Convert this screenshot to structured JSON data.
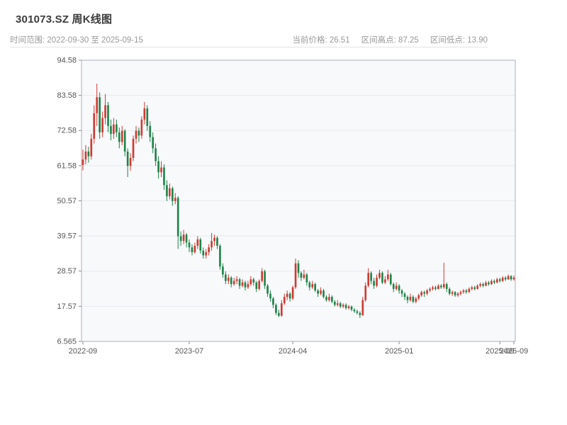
{
  "header": {
    "title": "301073.SZ 周K线图",
    "time_range_text": "时间范围: 2022-09-30 至 2025-09-15",
    "current_price_text": "当前价格: 26.51",
    "range_high_text": "区间高点: 87.25",
    "range_low_text": "区间低点: 13.90"
  },
  "chart_data": {
    "type": "candlestick",
    "symbol": "301073.SZ",
    "interval": "weekly",
    "title": "301073.SZ 周K线图",
    "time_range": {
      "start": "2022-09-30",
      "end": "2025-09-15"
    },
    "current_price": 26.51,
    "range_high": 87.25,
    "range_low": 13.9,
    "legend": "none",
    "grid": "horizontal",
    "y_axis": {
      "min": 6.565,
      "max": 94.58,
      "tick_values": [
        94.58,
        83.58,
        72.58,
        61.58,
        50.57,
        39.57,
        28.57,
        17.57,
        6.565
      ],
      "tick_labels": [
        "94.58",
        "83.58",
        "72.58",
        "61.58",
        "50.57",
        "39.57",
        "28.57",
        "17.57",
        "6.565"
      ]
    },
    "x_axis": {
      "ticks": [
        {
          "label": "2022-09",
          "week": 0
        },
        {
          "label": "2023-07",
          "week": 38
        },
        {
          "label": "2024-04",
          "week": 75
        },
        {
          "label": "2025-01",
          "week": 113
        },
        {
          "label": "2025-09",
          "week": 149
        },
        {
          "label": "2025-09",
          "week": 154
        }
      ]
    },
    "colors": {
      "up": "#cf3a31",
      "down": "#1e8449",
      "grid": "#e7e9ee",
      "plot_bg": "#f8f9fb",
      "axis": "#888888",
      "border": "#aab0b8",
      "label": "#555555"
    },
    "candles": [
      [
        61.8,
        66.6,
        60.1,
        63.5
      ],
      [
        63.5,
        68.0,
        62.0,
        66.0
      ],
      [
        66.0,
        67.5,
        62.5,
        64.5
      ],
      [
        64.5,
        71.5,
        63.5,
        70.0
      ],
      [
        70.0,
        80.5,
        68.5,
        78.0
      ],
      [
        78.0,
        87.25,
        74.0,
        83.0
      ],
      [
        83.0,
        84.5,
        70.0,
        72.0
      ],
      [
        72.0,
        78.5,
        70.5,
        76.5
      ],
      [
        76.5,
        84.0,
        74.5,
        80.5
      ],
      [
        80.5,
        81.5,
        72.0,
        74.0
      ],
      [
        74.0,
        76.0,
        69.5,
        71.5
      ],
      [
        71.5,
        76.5,
        70.0,
        74.5
      ],
      [
        74.5,
        76.0,
        70.5,
        72.0
      ],
      [
        72.0,
        73.5,
        67.0,
        69.0
      ],
      [
        69.0,
        74.0,
        68.0,
        72.5
      ],
      [
        72.5,
        73.0,
        64.5,
        66.0
      ],
      [
        66.0,
        67.0,
        58.0,
        61.5
      ],
      [
        61.5,
        65.5,
        60.0,
        64.0
      ],
      [
        64.0,
        71.0,
        63.0,
        70.0
      ],
      [
        70.0,
        74.0,
        68.5,
        72.5
      ],
      [
        72.5,
        73.5,
        69.0,
        71.0
      ],
      [
        71.0,
        77.0,
        70.0,
        76.0
      ],
      [
        76.0,
        81.5,
        74.5,
        79.5
      ],
      [
        79.5,
        80.5,
        72.5,
        74.0
      ],
      [
        74.0,
        75.5,
        69.0,
        70.5
      ],
      [
        70.5,
        72.0,
        65.5,
        67.0
      ],
      [
        67.0,
        68.5,
        61.5,
        63.0
      ],
      [
        63.0,
        64.5,
        57.5,
        59.5
      ],
      [
        59.5,
        63.0,
        58.0,
        61.0
      ],
      [
        61.0,
        62.0,
        54.0,
        55.5
      ],
      [
        55.5,
        57.0,
        50.5,
        52.0
      ],
      [
        52.0,
        56.0,
        51.0,
        54.5
      ],
      [
        54.5,
        55.0,
        49.0,
        50.5
      ],
      [
        50.5,
        53.0,
        49.5,
        51.5
      ],
      [
        51.5,
        52.0,
        35.5,
        39.5
      ],
      [
        39.5,
        41.0,
        36.5,
        38.0
      ],
      [
        38.0,
        41.5,
        37.0,
        40.0
      ],
      [
        40.0,
        40.5,
        36.0,
        37.5
      ],
      [
        37.5,
        38.5,
        34.5,
        36.0
      ],
      [
        36.0,
        37.0,
        33.5,
        34.5
      ],
      [
        34.5,
        37.5,
        34.0,
        36.5
      ],
      [
        36.5,
        39.5,
        35.5,
        38.5
      ],
      [
        38.5,
        39.0,
        34.0,
        35.0
      ],
      [
        35.0,
        36.0,
        32.5,
        33.5
      ],
      [
        33.5,
        35.5,
        32.5,
        34.5
      ],
      [
        34.5,
        37.0,
        33.5,
        36.0
      ],
      [
        36.0,
        40.5,
        35.0,
        38.0
      ],
      [
        38.0,
        40.0,
        36.5,
        39.0
      ],
      [
        39.0,
        39.5,
        35.5,
        36.5
      ],
      [
        36.5,
        37.0,
        29.0,
        30.0
      ],
      [
        30.0,
        31.0,
        26.5,
        27.5
      ],
      [
        27.5,
        28.5,
        24.5,
        25.5
      ],
      [
        25.5,
        27.5,
        24.5,
        26.5
      ],
      [
        26.5,
        27.0,
        23.5,
        24.5
      ],
      [
        24.5,
        26.5,
        24.0,
        25.5
      ],
      [
        25.5,
        27.0,
        24.5,
        26.0
      ],
      [
        26.0,
        26.5,
        23.0,
        24.0
      ],
      [
        24.0,
        26.0,
        23.5,
        25.0
      ],
      [
        25.0,
        25.5,
        22.5,
        23.5
      ],
      [
        23.5,
        25.5,
        23.0,
        24.5
      ],
      [
        24.5,
        27.0,
        24.0,
        26.0
      ],
      [
        26.0,
        26.5,
        24.0,
        25.0
      ],
      [
        25.0,
        25.5,
        22.0,
        23.0
      ],
      [
        23.0,
        26.0,
        22.5,
        25.5
      ],
      [
        25.5,
        29.5,
        25.0,
        28.5
      ],
      [
        28.5,
        29.0,
        23.0,
        24.0
      ],
      [
        24.0,
        24.5,
        20.5,
        21.5
      ],
      [
        21.5,
        22.5,
        19.0,
        20.0
      ],
      [
        20.0,
        20.5,
        17.0,
        18.0
      ],
      [
        18.0,
        18.5,
        14.8,
        15.5
      ],
      [
        15.5,
        16.5,
        14.2,
        14.6
      ],
      [
        14.6,
        19.5,
        14.3,
        18.5
      ],
      [
        18.5,
        21.5,
        18.0,
        20.5
      ],
      [
        20.5,
        22.5,
        19.5,
        21.5
      ],
      [
        21.5,
        22.0,
        19.0,
        20.0
      ],
      [
        20.0,
        24.0,
        19.5,
        23.5
      ],
      [
        23.5,
        32.5,
        23.0,
        31.0
      ],
      [
        31.0,
        32.0,
        26.5,
        28.0
      ],
      [
        28.0,
        28.5,
        25.5,
        26.5
      ],
      [
        26.5,
        29.0,
        26.0,
        27.5
      ],
      [
        27.5,
        28.0,
        24.0,
        25.0
      ],
      [
        25.0,
        25.5,
        22.5,
        23.5
      ],
      [
        23.5,
        25.5,
        23.0,
        24.5
      ],
      [
        24.5,
        25.0,
        22.0,
        22.5
      ],
      [
        22.5,
        23.0,
        20.5,
        21.5
      ],
      [
        21.5,
        23.5,
        21.0,
        22.5
      ],
      [
        22.5,
        23.0,
        20.0,
        20.5
      ],
      [
        20.5,
        21.0,
        19.0,
        19.5
      ],
      [
        19.5,
        21.5,
        19.0,
        20.5
      ],
      [
        20.5,
        21.0,
        18.5,
        19.0
      ],
      [
        19.0,
        19.5,
        17.5,
        18.0
      ],
      [
        18.0,
        19.5,
        17.5,
        18.5
      ],
      [
        18.5,
        19.0,
        17.0,
        17.5
      ],
      [
        17.5,
        18.5,
        17.0,
        18.0
      ],
      [
        18.0,
        18.5,
        16.5,
        17.0
      ],
      [
        17.0,
        18.0,
        16.5,
        17.5
      ],
      [
        17.5,
        17.8,
        16.0,
        16.5
      ],
      [
        16.5,
        17.0,
        15.5,
        16.0
      ],
      [
        16.0,
        16.5,
        15.0,
        15.5
      ],
      [
        15.5,
        16.0,
        13.9,
        14.8
      ],
      [
        14.8,
        20.5,
        14.5,
        19.5
      ],
      [
        19.5,
        25.0,
        19.0,
        24.0
      ],
      [
        24.0,
        29.5,
        23.5,
        28.0
      ],
      [
        28.0,
        28.5,
        24.5,
        25.5
      ],
      [
        25.5,
        26.5,
        23.0,
        24.0
      ],
      [
        24.0,
        27.5,
        23.5,
        26.5
      ],
      [
        26.5,
        29.0,
        26.0,
        28.0
      ],
      [
        28.0,
        28.5,
        24.5,
        25.0
      ],
      [
        25.0,
        27.0,
        24.5,
        26.0
      ],
      [
        26.0,
        29.0,
        25.5,
        27.5
      ],
      [
        27.5,
        28.0,
        24.0,
        24.5
      ],
      [
        24.5,
        25.0,
        22.0,
        23.0
      ],
      [
        23.0,
        25.0,
        22.5,
        24.0
      ],
      [
        24.0,
        24.5,
        21.5,
        22.5
      ],
      [
        22.5,
        23.0,
        20.5,
        21.5
      ],
      [
        21.5,
        22.0,
        19.5,
        20.5
      ],
      [
        20.5,
        21.0,
        18.5,
        19.5
      ],
      [
        19.5,
        21.5,
        19.0,
        20.5
      ],
      [
        20.5,
        21.0,
        18.5,
        19.0
      ],
      [
        19.0,
        20.5,
        18.5,
        20.0
      ],
      [
        20.0,
        21.5,
        19.5,
        21.0
      ],
      [
        21.0,
        22.5,
        20.5,
        22.0
      ],
      [
        22.0,
        22.5,
        20.5,
        21.5
      ],
      [
        21.5,
        23.0,
        21.0,
        22.5
      ],
      [
        22.5,
        23.5,
        22.0,
        23.0
      ],
      [
        23.0,
        24.0,
        22.5,
        23.5
      ],
      [
        23.5,
        24.0,
        22.5,
        23.0
      ],
      [
        23.0,
        24.5,
        22.8,
        24.0
      ],
      [
        24.0,
        24.5,
        23.0,
        23.5
      ],
      [
        23.5,
        31.2,
        23.0,
        24.5
      ],
      [
        24.5,
        25.0,
        22.0,
        23.0
      ],
      [
        23.0,
        23.5,
        21.0,
        21.5
      ],
      [
        21.5,
        22.5,
        20.8,
        22.0
      ],
      [
        22.0,
        22.3,
        20.5,
        21.0
      ],
      [
        21.0,
        22.0,
        20.5,
        21.5
      ],
      [
        21.5,
        22.5,
        21.0,
        22.0
      ],
      [
        22.0,
        23.0,
        21.5,
        22.5
      ],
      [
        22.5,
        23.0,
        21.5,
        22.0
      ],
      [
        22.0,
        23.5,
        21.8,
        23.0
      ],
      [
        23.0,
        24.0,
        22.5,
        23.5
      ],
      [
        23.5,
        24.0,
        22.5,
        23.0
      ],
      [
        23.0,
        24.5,
        22.8,
        24.0
      ],
      [
        24.0,
        25.0,
        23.5,
        24.5
      ],
      [
        24.5,
        25.0,
        23.5,
        24.0
      ],
      [
        24.0,
        25.5,
        23.8,
        25.0
      ],
      [
        25.0,
        25.5,
        24.0,
        24.5
      ],
      [
        24.5,
        26.0,
        24.2,
        25.5
      ],
      [
        25.5,
        26.0,
        24.5,
        25.0
      ],
      [
        25.0,
        26.5,
        24.8,
        26.0
      ],
      [
        26.0,
        26.5,
        25.0,
        25.5
      ],
      [
        25.5,
        27.0,
        25.2,
        26.5
      ],
      [
        26.5,
        27.0,
        25.5,
        26.0
      ],
      [
        26.0,
        27.5,
        25.8,
        27.0
      ],
      [
        27.0,
        27.3,
        25.5,
        26.0
      ],
      [
        26.0,
        27.2,
        25.6,
        26.51
      ]
    ]
  }
}
